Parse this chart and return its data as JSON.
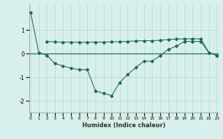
{
  "line1_x": [
    0,
    1,
    2,
    3,
    4,
    5,
    6,
    7,
    8,
    9,
    10,
    11,
    12,
    13,
    14,
    15,
    16,
    17,
    18,
    19,
    20,
    21,
    22,
    23
  ],
  "line1_y": [
    1.75,
    0.05,
    -0.07,
    -0.42,
    -0.52,
    -0.62,
    -0.68,
    -0.68,
    -1.58,
    -1.68,
    -1.78,
    -1.22,
    -0.88,
    -0.58,
    -0.32,
    -0.32,
    -0.08,
    0.18,
    0.32,
    0.52,
    0.52,
    0.52,
    0.05,
    -0.08
  ],
  "line2_x": [
    2,
    3,
    4,
    5,
    6,
    7,
    8,
    9,
    10,
    11,
    12,
    13,
    14,
    15,
    16,
    17,
    18,
    19,
    20,
    21,
    22,
    23
  ],
  "line2_y": [
    0.52,
    0.5,
    0.49,
    0.49,
    0.48,
    0.49,
    0.49,
    0.49,
    0.5,
    0.51,
    0.52,
    0.54,
    0.55,
    0.55,
    0.57,
    0.6,
    0.62,
    0.63,
    0.63,
    0.63,
    0.05,
    -0.08
  ],
  "line_color": "#1a6b5a",
  "bg_color": "#d8f0eb",
  "grid_color": "#b0d8d0",
  "zero_line_color": "#2a7a6a",
  "xlabel": "Humidex (Indice chaleur)",
  "yticks": [
    -2,
    -1,
    0,
    1
  ],
  "xticks": [
    0,
    1,
    2,
    3,
    4,
    5,
    6,
    7,
    8,
    9,
    10,
    11,
    12,
    13,
    14,
    15,
    16,
    17,
    18,
    19,
    20,
    21,
    22,
    23
  ],
  "ylim": [
    -2.5,
    2.1
  ],
  "xlim": [
    -0.2,
    23.2
  ]
}
